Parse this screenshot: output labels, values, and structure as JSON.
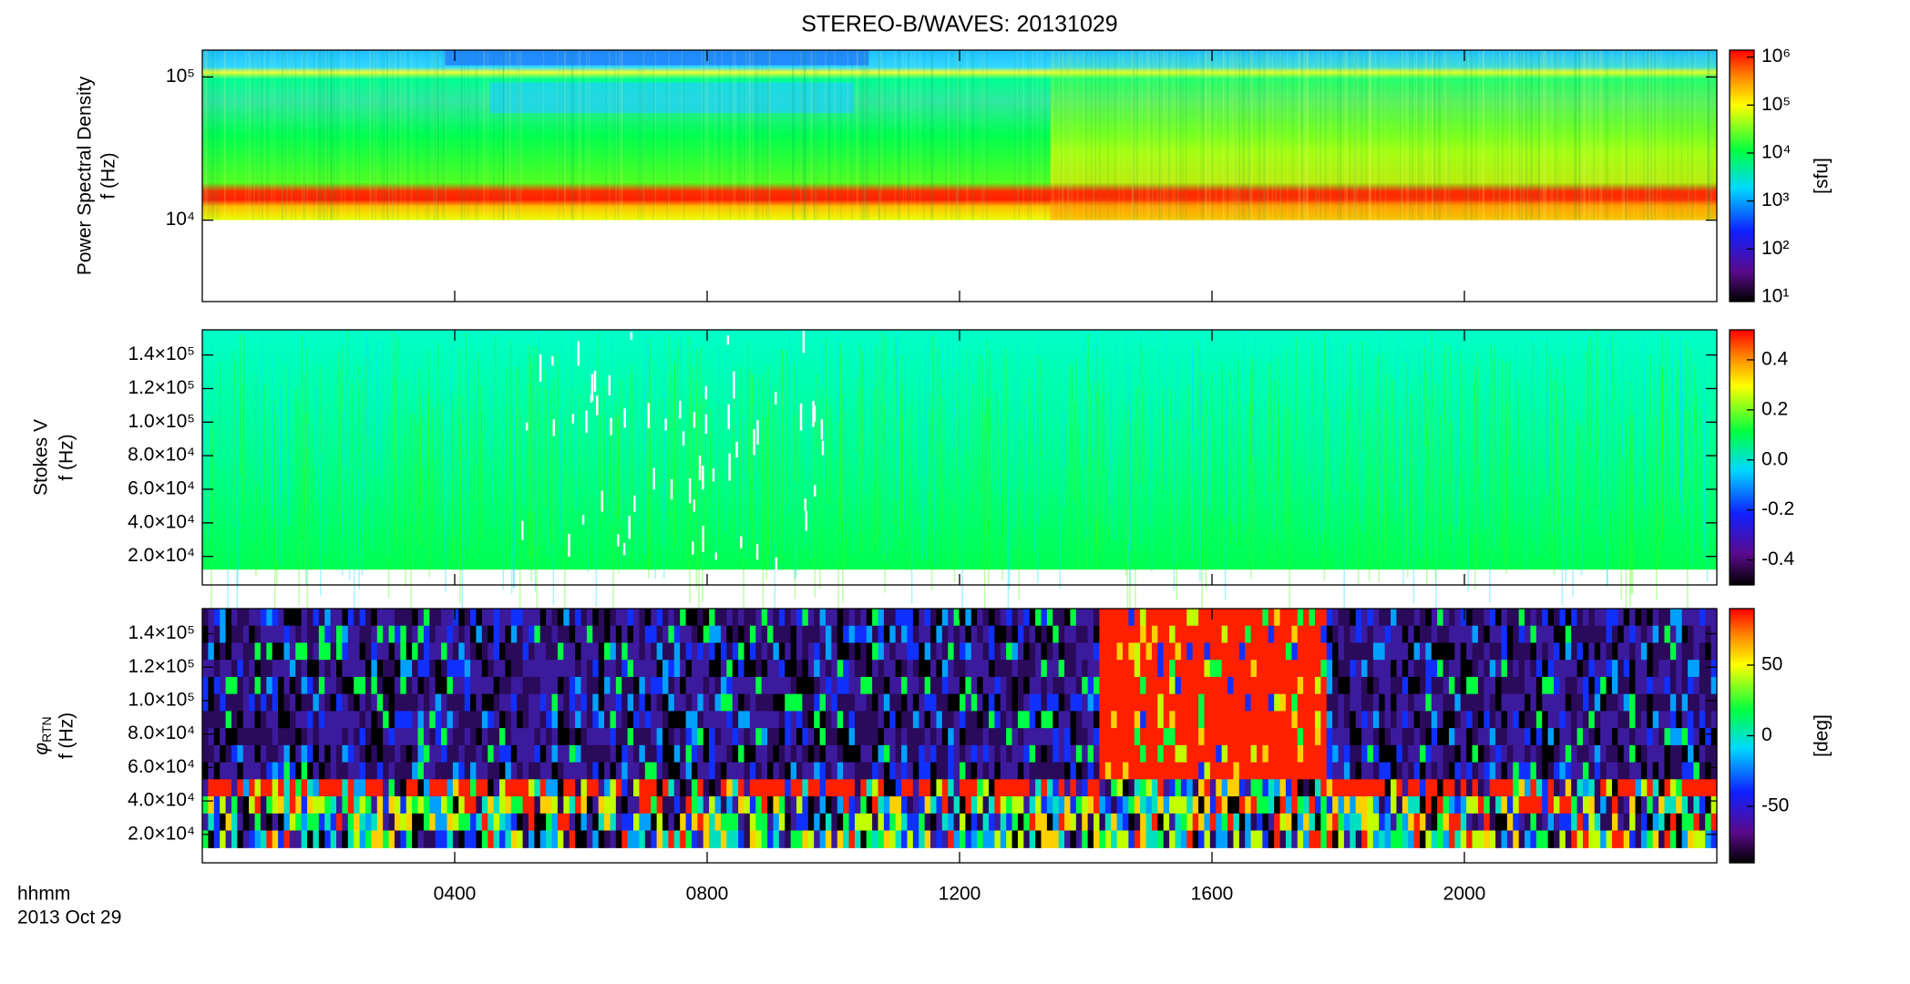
{
  "chart_data": [
    {
      "type": "spectrogram",
      "title": "STEREO-B/WAVES: 20131029",
      "ylabel": "Power Spectral Density",
      "ylabel2": "f (Hz)",
      "ylog": true,
      "ylim": [
        2700,
        154000
      ],
      "yticks": [
        {
          "value": 10000,
          "label": "10⁴"
        },
        {
          "value": 100000,
          "label": "10⁵"
        }
      ],
      "xlim": [
        0,
        24
      ],
      "clog": true,
      "clim": [
        8,
        1400000
      ],
      "cticks": [
        {
          "value": 10,
          "label": "10¹"
        },
        {
          "value": 100,
          "label": "10²"
        },
        {
          "value": 1000,
          "label": "10³"
        },
        {
          "value": 10000,
          "label": "10⁴"
        },
        {
          "value": 100000,
          "label": "10⁵"
        },
        {
          "value": 1000000,
          "label": "10⁶"
        }
      ],
      "clabel": "[sfu]"
    },
    {
      "type": "spectrogram",
      "ylabel": "Stokes V",
      "ylabel2": "f (Hz)",
      "ylog": false,
      "ylim": [
        3000,
        155000
      ],
      "yticks": [
        {
          "value": 20000,
          "label": "2.0×10⁴"
        },
        {
          "value": 40000,
          "label": "4.0×10⁴"
        },
        {
          "value": 60000,
          "label": "6.0×10⁴"
        },
        {
          "value": 80000,
          "label": "8.0×10⁴"
        },
        {
          "value": 100000,
          "label": "1.0×10⁵"
        },
        {
          "value": 120000,
          "label": "1.2×10⁵"
        },
        {
          "value": 140000,
          "label": "1.4×10⁵"
        }
      ],
      "xlim": [
        0,
        24
      ],
      "clog": false,
      "clim": [
        -0.5,
        0.52
      ],
      "cticks": [
        -0.4,
        -0.2,
        {
          "value": 0,
          "label": "0.0"
        },
        0.2,
        0.4
      ]
    },
    {
      "type": "spectrogram",
      "ylabel": "φ",
      "ylabel_sub": "RTN",
      "ylabel2": "f (Hz)",
      "ylog": false,
      "ylim": [
        3000,
        155000
      ],
      "yticks": [
        {
          "value": 20000,
          "label": "2.0×10⁴"
        },
        {
          "value": 40000,
          "label": "4.0×10⁴"
        },
        {
          "value": 60000,
          "label": "6.0×10⁴"
        },
        {
          "value": 80000,
          "label": "8.0×10⁴"
        },
        {
          "value": 100000,
          "label": "1.0×10⁵"
        },
        {
          "value": 120000,
          "label": "1.2×10⁵"
        },
        {
          "value": 140000,
          "label": "1.4×10⁵"
        }
      ],
      "xlim": [
        0,
        24
      ],
      "xticks": [
        {
          "value": 4,
          "label": "0400"
        },
        {
          "value": 8,
          "label": "0800"
        },
        {
          "value": 12,
          "label": "1200"
        },
        {
          "value": 16,
          "label": "1600"
        },
        {
          "value": 20,
          "label": "2000"
        }
      ],
      "xlabel": "hhmm",
      "xlabel2": "2013 Oct 29",
      "clog": false,
      "clim": [
        -90,
        90
      ],
      "cticks": [
        -50,
        0,
        50
      ],
      "clabel": "[deg]"
    }
  ]
}
